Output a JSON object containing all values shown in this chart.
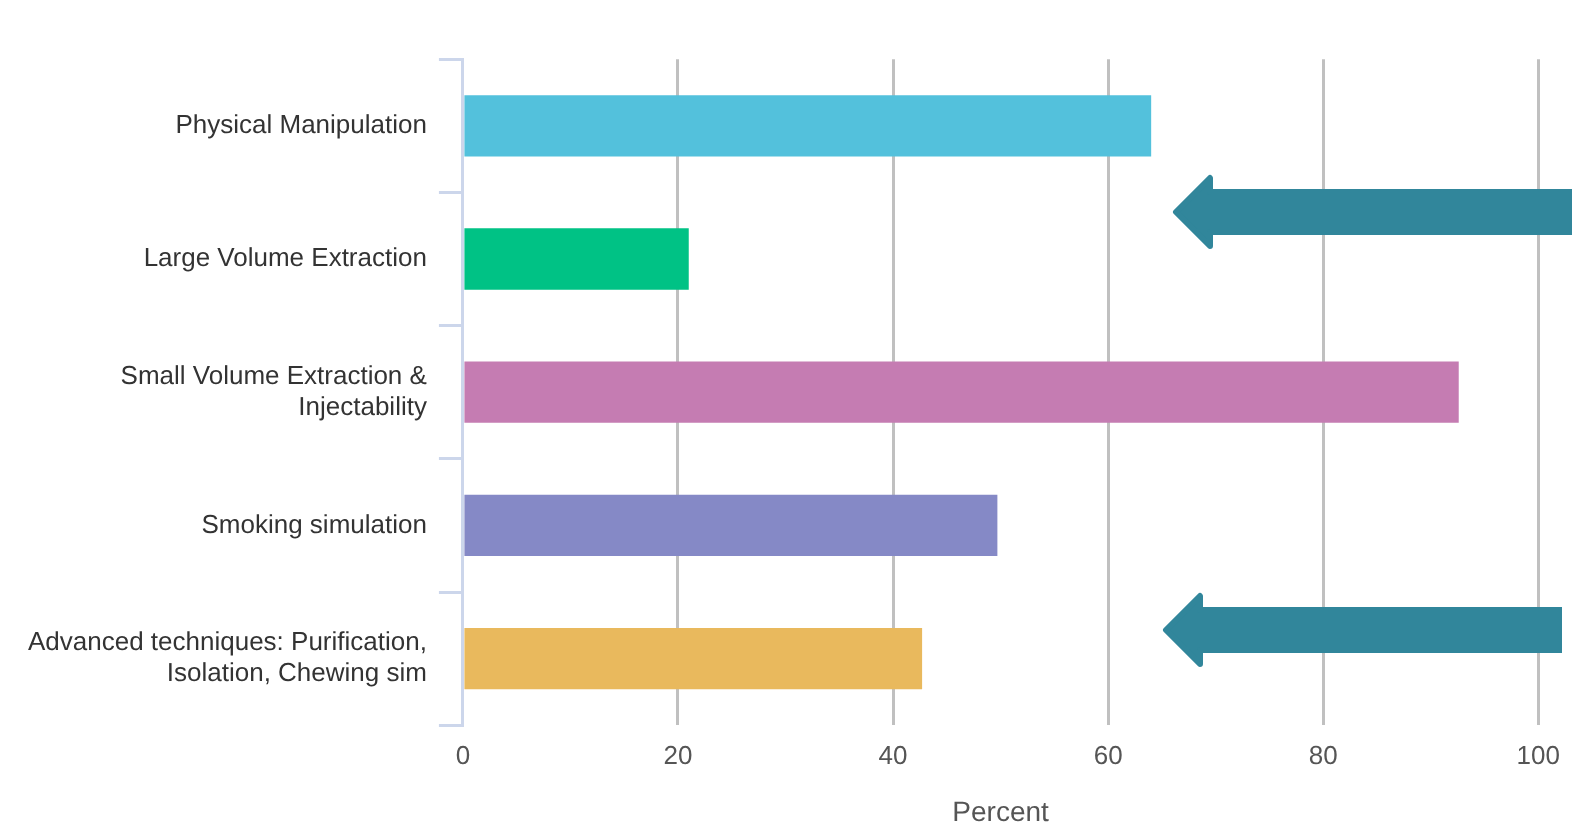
{
  "chart_data": {
    "type": "bar",
    "orientation": "horizontal",
    "categories": [
      "Physical Manipulation",
      "Large Volume Extraction",
      "Small Volume Extraction & Injectability",
      "Smoking simulation",
      "Advanced techniques: Purification, Isolation, Chewing sim"
    ],
    "values": [
      64,
      21,
      92.6,
      49.7,
      42.7
    ],
    "colors": [
      "#53c1dc",
      "#00c285",
      "#c57cb2",
      "#8589c6",
      "#e9b95d"
    ],
    "xlabel": "Percent",
    "xlim": [
      0,
      100
    ],
    "xticks": [
      0,
      20,
      40,
      60,
      80,
      100
    ],
    "grid": "x",
    "legend": false
  }
}
